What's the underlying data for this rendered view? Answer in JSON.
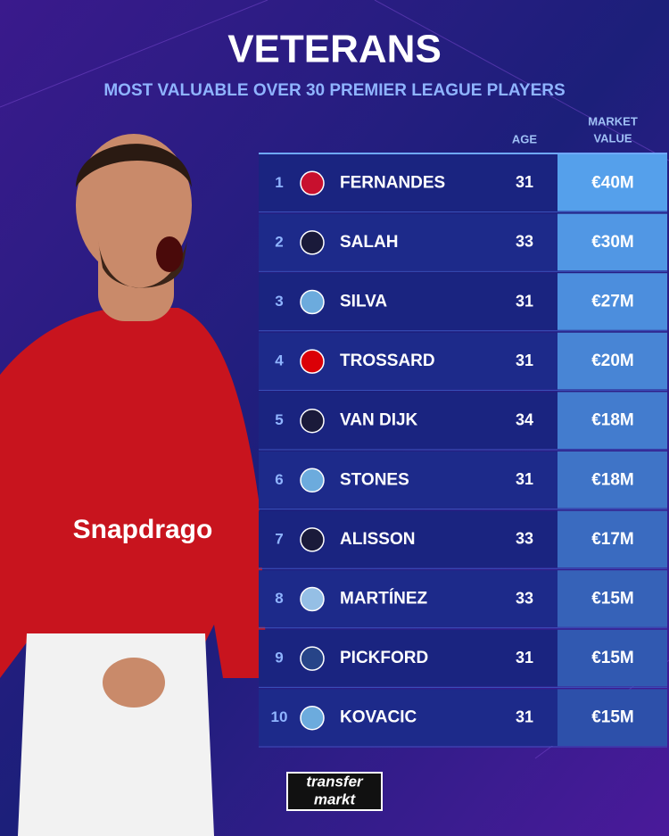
{
  "header": {
    "title": "VETERANS",
    "subtitle": "MOST VALUABLE OVER 30 PREMIER LEAGUE PLAYERS"
  },
  "table": {
    "columns": {
      "age": "AGE",
      "value": [
        "MARKET",
        "VALUE"
      ]
    },
    "rows": [
      [
        "1",
        "FERNANDES",
        31,
        "€40M"
      ],
      [
        "2",
        "SALAH",
        33,
        "€30M"
      ],
      [
        "3",
        "SILVA",
        31,
        "€27M"
      ],
      [
        "4",
        "TROSSARD",
        31,
        "€20M"
      ],
      [
        "5",
        "VAN DIJK",
        34,
        "€18M"
      ],
      [
        "6",
        "STONES",
        31,
        "€18M"
      ],
      [
        "7",
        "ALISSON",
        33,
        "€17M"
      ],
      [
        "8",
        "MARTÍNEZ",
        33,
        "€15M"
      ],
      [
        "9",
        "PICKFORD",
        31,
        "€15M"
      ],
      [
        "10",
        "KOVACIC",
        31,
        "€15M"
      ]
    ]
  },
  "footer": {
    "logo": [
      "transfer",
      "markt"
    ]
  }
}
